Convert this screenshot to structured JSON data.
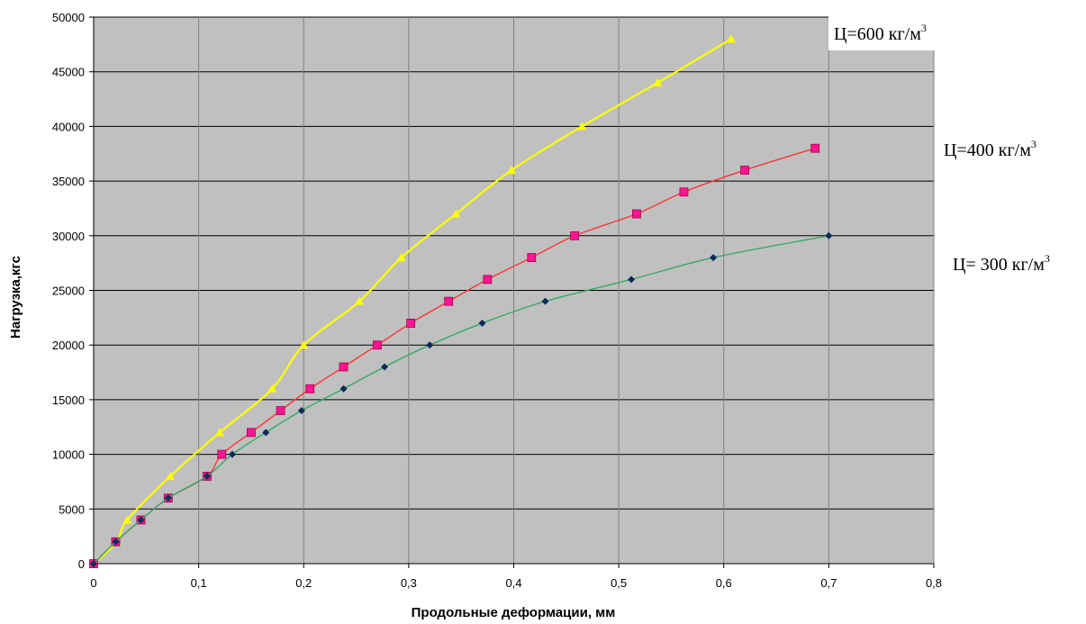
{
  "chart_data": {
    "type": "line",
    "xlabel": "Продольные деформации, мм",
    "ylabel": "Нагрузка,кгс",
    "xlim": [
      0,
      0.8
    ],
    "ylim": [
      0,
      50000
    ],
    "x_ticks": [
      "0",
      "0,1",
      "0,2",
      "0,3",
      "0,4",
      "0,5",
      "0,6",
      "0,7",
      "0,8"
    ],
    "y_ticks": [
      "0",
      "5000",
      "10000",
      "15000",
      "20000",
      "25000",
      "30000",
      "35000",
      "40000",
      "45000",
      "50000"
    ],
    "grid": true,
    "plot_background": "#c0c0c0",
    "series": [
      {
        "name": "Ц=600 кг/м",
        "name_sup": "3",
        "color": "#ffff00",
        "marker": "triangle",
        "x": [
          0,
          0.022,
          0.032,
          0.073,
          0.12,
          0.17,
          0.2,
          0.253,
          0.293,
          0.345,
          0.398,
          0.465,
          0.537,
          0.607
        ],
        "y": [
          0,
          2000,
          4000,
          8000,
          12000,
          16000,
          20000,
          24000,
          28000,
          32000,
          36000,
          40000,
          44000,
          48000
        ]
      },
      {
        "name": "Ц=400 кг/м",
        "name_sup": "3",
        "color": "#ff3333",
        "marker_color": "#ff1493",
        "marker": "square",
        "x": [
          0,
          0.021,
          0.045,
          0.071,
          0.108,
          0.122,
          0.15,
          0.178,
          0.206,
          0.238,
          0.27,
          0.302,
          0.338,
          0.375,
          0.417,
          0.458,
          0.517,
          0.562,
          0.62,
          0.687
        ],
        "y": [
          0,
          2000,
          4000,
          6000,
          8000,
          10000,
          12000,
          14000,
          16000,
          18000,
          20000,
          22000,
          24000,
          26000,
          28000,
          30000,
          32000,
          34000,
          36000,
          38000
        ]
      },
      {
        "name": "Ц= 300 кг/м",
        "name_sup": "3",
        "color": "#33aa66",
        "marker_color": "#0a2a5a",
        "marker": "diamond",
        "x": [
          0,
          0.021,
          0.045,
          0.071,
          0.108,
          0.132,
          0.164,
          0.198,
          0.238,
          0.277,
          0.32,
          0.37,
          0.43,
          0.512,
          0.59,
          0.7
        ],
        "y": [
          0,
          2000,
          4000,
          6000,
          8000,
          10000,
          12000,
          14000,
          16000,
          18000,
          20000,
          22000,
          24000,
          26000,
          28000,
          30000
        ]
      }
    ]
  }
}
